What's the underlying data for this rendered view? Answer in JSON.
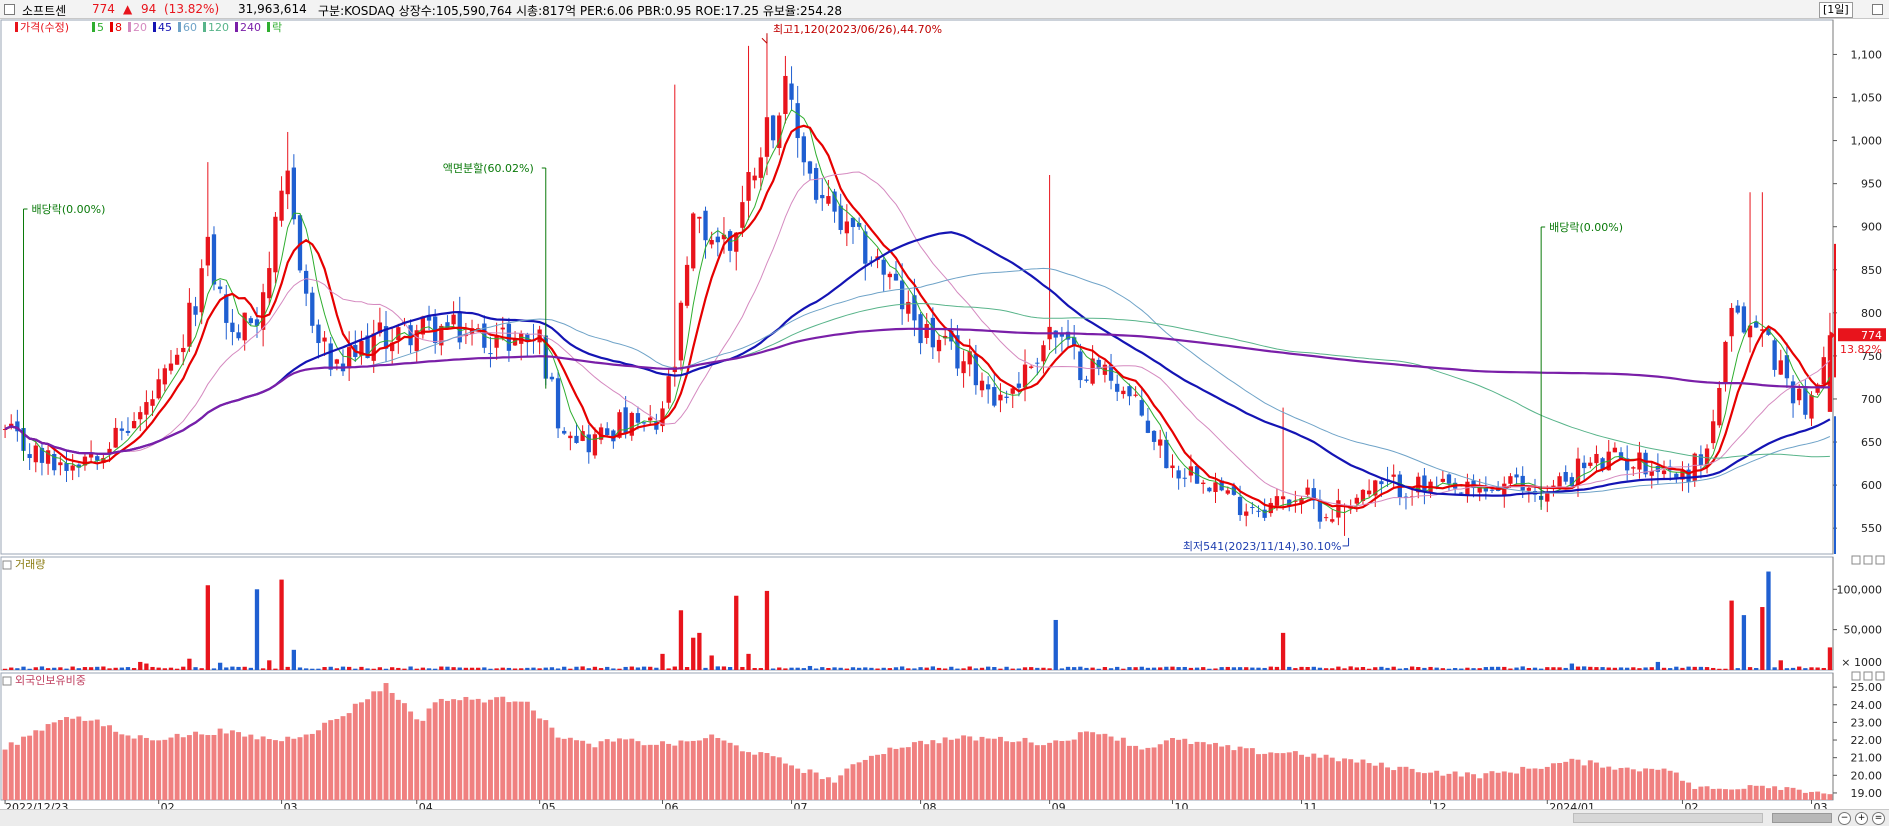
{
  "header": {
    "name": "소프트센",
    "price": "774",
    "change_arrow": "▲",
    "change": "94",
    "change_pct": "(13.82%)",
    "volume": "31,963,614",
    "info": "구분:KOSDAQ 상장수:105,590,764 시총:817억 PER:6.06 PBR:0.95 ROE:17.25 유보율:254.28",
    "period": "[1일]"
  },
  "colors": {
    "up": "#e8141c",
    "down": "#1f5fd1",
    "ma5": "#2fae2f",
    "ma8": "#e60000",
    "ma20": "#d58ac0",
    "ma45": "#1414b4",
    "ma60": "#6fa3c8",
    "ma120": "#58b48a",
    "ma240": "#7a1fa8",
    "foreign": "#f08080"
  },
  "price_panel": {
    "legend": [
      {
        "label": "가격(수정)",
        "color": "#e8141c"
      },
      {
        "label": "5",
        "color": "#2fae2f"
      },
      {
        "label": "8",
        "color": "#e60000"
      },
      {
        "label": "20",
        "color": "#d58ac0"
      },
      {
        "label": "45",
        "color": "#1414b4"
      },
      {
        "label": "60",
        "color": "#6fa3c8"
      },
      {
        "label": "120",
        "color": "#58b48a"
      },
      {
        "label": "240",
        "color": "#7a1fa8"
      },
      {
        "label": "락",
        "color": "#2fae2f"
      }
    ],
    "current_price_label": "774",
    "current_pct_label": "13.82%"
  },
  "volume_panel": {
    "title": "거래량",
    "unit_label": "× 1000"
  },
  "foreign_panel": {
    "title": "외국인보유비중"
  },
  "chart_data": [
    {
      "type": "candlestick",
      "title": "",
      "ylim": [
        520,
        1140
      ],
      "yticks": [
        550,
        600,
        650,
        700,
        750,
        800,
        850,
        900,
        950,
        1000,
        1050,
        1100
      ],
      "ytick_labels": [
        "550",
        "600",
        "650",
        "700",
        "750",
        "800",
        "850",
        "900",
        "950",
        "1,000",
        "1,050",
        "1,100"
      ],
      "x_labels": [
        "2022/12/23",
        "02",
        "03",
        "04",
        "05",
        "06",
        "07",
        "08",
        "09",
        "10",
        "11",
        "12",
        "2024/01",
        "02",
        "03"
      ],
      "x_label_index": [
        0,
        25,
        45,
        67,
        87,
        107,
        128,
        149,
        170,
        190,
        211,
        232,
        251,
        273,
        294
      ],
      "n_bars": 298,
      "anchors": [
        [
          0,
          660
        ],
        [
          6,
          630
        ],
        [
          10,
          625
        ],
        [
          18,
          655
        ],
        [
          22,
          680
        ],
        [
          28,
          740
        ],
        [
          33,
          870
        ],
        [
          37,
          770
        ],
        [
          41,
          800
        ],
        [
          46,
          950
        ],
        [
          50,
          780
        ],
        [
          54,
          730
        ],
        [
          60,
          770
        ],
        [
          67,
          780
        ],
        [
          72,
          780
        ],
        [
          80,
          770
        ],
        [
          87,
          770
        ],
        [
          90,
          680
        ],
        [
          95,
          650
        ],
        [
          100,
          670
        ],
        [
          106,
          665
        ],
        [
          109,
          740
        ],
        [
          112,
          900
        ],
        [
          118,
          880
        ],
        [
          123,
          1000
        ],
        [
          127,
          1050
        ],
        [
          132,
          940
        ],
        [
          137,
          890
        ],
        [
          142,
          860
        ],
        [
          147,
          800
        ],
        [
          152,
          760
        ],
        [
          157,
          740
        ],
        [
          162,
          700
        ],
        [
          166,
          730
        ],
        [
          170,
          780
        ],
        [
          175,
          740
        ],
        [
          180,
          730
        ],
        [
          185,
          680
        ],
        [
          190,
          620
        ],
        [
          195,
          615
        ],
        [
          200,
          580
        ],
        [
          205,
          575
        ],
        [
          211,
          590
        ],
        [
          215,
          565
        ],
        [
          220,
          590
        ],
        [
          226,
          600
        ],
        [
          232,
          595
        ],
        [
          238,
          590
        ],
        [
          245,
          600
        ],
        [
          251,
          590
        ],
        [
          256,
          620
        ],
        [
          262,
          630
        ],
        [
          268,
          625
        ],
        [
          273,
          610
        ],
        [
          277,
          640
        ],
        [
          281,
          790
        ],
        [
          286,
          780
        ],
        [
          290,
          720
        ],
        [
          294,
          690
        ],
        [
          297,
          774
        ]
      ],
      "points": [
        {
          "name": "최고",
          "index": 124,
          "value": 1120,
          "label": "최고1,120(2023/06/26),44.70%"
        },
        {
          "name": "최저",
          "index": 218,
          "value": 541,
          "label": "최저541(2023/11/14),30.10%"
        }
      ],
      "events": [
        {
          "index": 3,
          "label": "배당락(0.00%)"
        },
        {
          "index": 88,
          "label": "액면분할(60.02%)"
        },
        {
          "index": 250,
          "label": "배당락(0.00%)"
        }
      ],
      "ma_periods": [
        5,
        8,
        20,
        45,
        60,
        120,
        240
      ],
      "current": {
        "value": 774,
        "pct": "13.82%"
      }
    },
    {
      "type": "bar",
      "title": "거래량",
      "unit": "× 1000",
      "ylim": [
        0,
        140000
      ],
      "yticks": [
        50000,
        100000
      ],
      "ytick_labels": [
        "50,000",
        "100,000"
      ],
      "base_volume": 3000,
      "spikes": [
        [
          22,
          10000
        ],
        [
          23,
          8000
        ],
        [
          30,
          14000
        ],
        [
          33,
          105000
        ],
        [
          35,
          9000
        ],
        [
          41,
          100000
        ],
        [
          43,
          12000
        ],
        [
          45,
          112000
        ],
        [
          47,
          25000
        ],
        [
          107,
          20000
        ],
        [
          110,
          74000
        ],
        [
          112,
          40000
        ],
        [
          113,
          46000
        ],
        [
          115,
          18000
        ],
        [
          119,
          92000
        ],
        [
          121,
          20000
        ],
        [
          124,
          98000
        ],
        [
          131,
          5000
        ],
        [
          171,
          62000
        ],
        [
          208,
          46000
        ],
        [
          255,
          8000
        ],
        [
          269,
          10000
        ],
        [
          281,
          86000
        ],
        [
          283,
          68000
        ],
        [
          286,
          78000
        ],
        [
          287,
          122000
        ],
        [
          289,
          12000
        ],
        [
          297,
          28000
        ]
      ]
    },
    {
      "type": "bar",
      "title": "외국인보유비중",
      "ylim": [
        18.6,
        25.8
      ],
      "yticks": [
        19,
        20,
        21,
        22,
        23,
        24,
        25
      ],
      "ytick_labels": [
        "19.00",
        "20.00",
        "21.00",
        "22.00",
        "23.00",
        "24.00",
        "25.00"
      ],
      "anchors": [
        [
          0,
          21.5
        ],
        [
          5,
          22.5
        ],
        [
          10,
          23.4
        ],
        [
          15,
          23.0
        ],
        [
          20,
          22.2
        ],
        [
          25,
          22.1
        ],
        [
          30,
          22.3
        ],
        [
          35,
          22.5
        ],
        [
          40,
          22.2
        ],
        [
          45,
          22.0
        ],
        [
          50,
          22.5
        ],
        [
          55,
          23.4
        ],
        [
          60,
          24.7
        ],
        [
          62,
          25.1
        ],
        [
          65,
          24.0
        ],
        [
          68,
          23.0
        ],
        [
          70,
          24.3
        ],
        [
          75,
          24.3
        ],
        [
          85,
          24.3
        ],
        [
          87,
          23.3
        ],
        [
          90,
          22.3
        ],
        [
          95,
          21.7
        ],
        [
          100,
          22.0
        ],
        [
          105,
          21.8
        ],
        [
          110,
          21.8
        ],
        [
          115,
          22.2
        ],
        [
          120,
          21.5
        ],
        [
          125,
          21.0
        ],
        [
          130,
          20.3
        ],
        [
          135,
          19.7
        ],
        [
          140,
          21.0
        ],
        [
          145,
          21.6
        ],
        [
          150,
          21.9
        ],
        [
          155,
          22.1
        ],
        [
          160,
          22.1
        ],
        [
          165,
          22.0
        ],
        [
          170,
          21.8
        ],
        [
          175,
          22.3
        ],
        [
          178,
          22.5
        ],
        [
          182,
          22.0
        ],
        [
          185,
          21.5
        ],
        [
          190,
          22.0
        ],
        [
          195,
          21.8
        ],
        [
          200,
          21.5
        ],
        [
          205,
          21.3
        ],
        [
          210,
          21.3
        ],
        [
          215,
          21.0
        ],
        [
          220,
          20.8
        ],
        [
          225,
          20.5
        ],
        [
          230,
          20.3
        ],
        [
          235,
          20.1
        ],
        [
          240,
          20.0
        ],
        [
          245,
          20.2
        ],
        [
          250,
          20.5
        ],
        [
          255,
          20.8
        ],
        [
          260,
          20.6
        ],
        [
          265,
          20.3
        ],
        [
          270,
          20.5
        ],
        [
          275,
          19.3
        ],
        [
          280,
          19.2
        ],
        [
          285,
          19.5
        ],
        [
          290,
          19.3
        ],
        [
          297,
          19.0
        ]
      ]
    }
  ]
}
